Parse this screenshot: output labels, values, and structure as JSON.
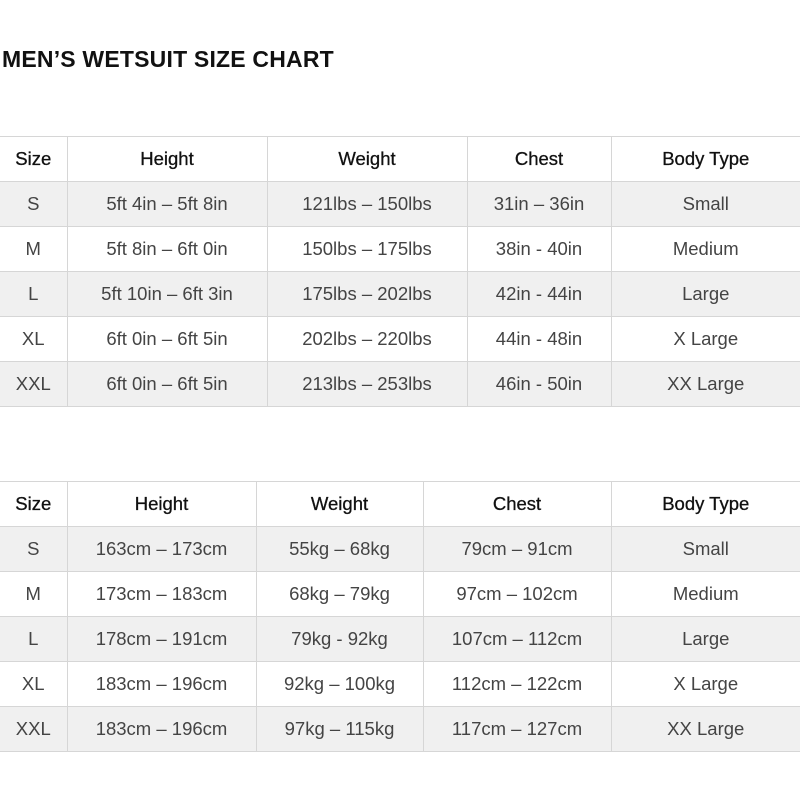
{
  "title": "MEN’S WETSUIT SIZE CHART",
  "imperial_table": {
    "headers": [
      "Size",
      "Height",
      "Weight",
      "Chest",
      "Body Type"
    ],
    "rows": [
      [
        "S",
        "5ft 4in – 5ft 8in",
        "121lbs – 150lbs",
        "31in – 36in",
        "Small"
      ],
      [
        "M",
        "5ft 8in – 6ft 0in",
        "150lbs – 175lbs",
        "38in - 40in",
        "Medium"
      ],
      [
        "L",
        "5ft 10in – 6ft 3in",
        "175lbs – 202lbs",
        "42in - 44in",
        "Large"
      ],
      [
        "XL",
        "6ft 0in – 6ft 5in",
        "202lbs – 220lbs",
        "44in - 48in",
        "X Large"
      ],
      [
        "XXL",
        "6ft 0in – 6ft 5in",
        "213lbs – 253lbs",
        "46in - 50in",
        "XX Large"
      ]
    ]
  },
  "metric_table": {
    "headers": [
      "Size",
      "Height",
      "Weight",
      "Chest",
      "Body Type"
    ],
    "rows": [
      [
        "S",
        "163cm – 173cm",
        "55kg – 68kg",
        "79cm – 91cm",
        "Small"
      ],
      [
        "M",
        "173cm – 183cm",
        "68kg – 79kg",
        "97cm – 102cm",
        "Medium"
      ],
      [
        "L",
        "178cm – 191cm",
        "79kg - 92kg",
        "107cm – 112cm",
        "Large"
      ],
      [
        "XL",
        "183cm – 196cm",
        "92kg – 100kg",
        "112cm – 122cm",
        "X Large"
      ],
      [
        "XXL",
        "183cm – 196cm",
        "97kg – 115kg",
        "117cm – 127cm",
        "XX Large"
      ]
    ]
  }
}
